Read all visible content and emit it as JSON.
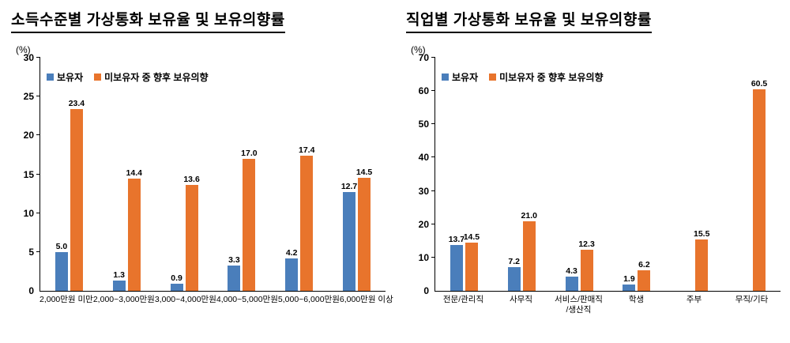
{
  "chart_data": [
    {
      "type": "bar",
      "title": "소득수준별 가상통화 보유율 및 보유의향률",
      "unit": "(%)",
      "ylim": [
        0,
        30
      ],
      "yticks": [
        0,
        5,
        10,
        15,
        20,
        25,
        30
      ],
      "grid": false,
      "legend_position": "top-left",
      "categories": [
        "2,000만원 미만",
        "2,000~3,000만원",
        "3,000~4,000만원",
        "4,000~5,000만원",
        "5,000~6,000만원",
        "6,000만원 이상"
      ],
      "series": [
        {
          "name": "보유자",
          "color": "#4a7ebb",
          "values": [
            5.0,
            1.3,
            0.9,
            3.3,
            4.2,
            12.7
          ]
        },
        {
          "name": "미보유자 중 향후 보유의향",
          "color": "#e8742c",
          "values": [
            23.4,
            14.4,
            13.6,
            17.0,
            17.4,
            14.5
          ]
        }
      ]
    },
    {
      "type": "bar",
      "title": "직업별 가상통화 보유율 및 보유의향률",
      "unit": "(%)",
      "ylim": [
        0,
        70
      ],
      "yticks": [
        0,
        10,
        20,
        30,
        40,
        50,
        60,
        70
      ],
      "grid": false,
      "legend_position": "top-left",
      "categories": [
        "전문/관리직",
        "사무직",
        "서비스/판매직\n/생산직",
        "학생",
        "주부",
        "무직/기타"
      ],
      "series": [
        {
          "name": "보유자",
          "color": "#4a7ebb",
          "values": [
            13.7,
            7.2,
            4.3,
            1.9,
            null,
            null
          ]
        },
        {
          "name": "미보유자 중 향후 보유의향",
          "color": "#e8742c",
          "values": [
            14.5,
            21.0,
            12.3,
            6.2,
            15.5,
            60.5
          ]
        }
      ]
    }
  ]
}
